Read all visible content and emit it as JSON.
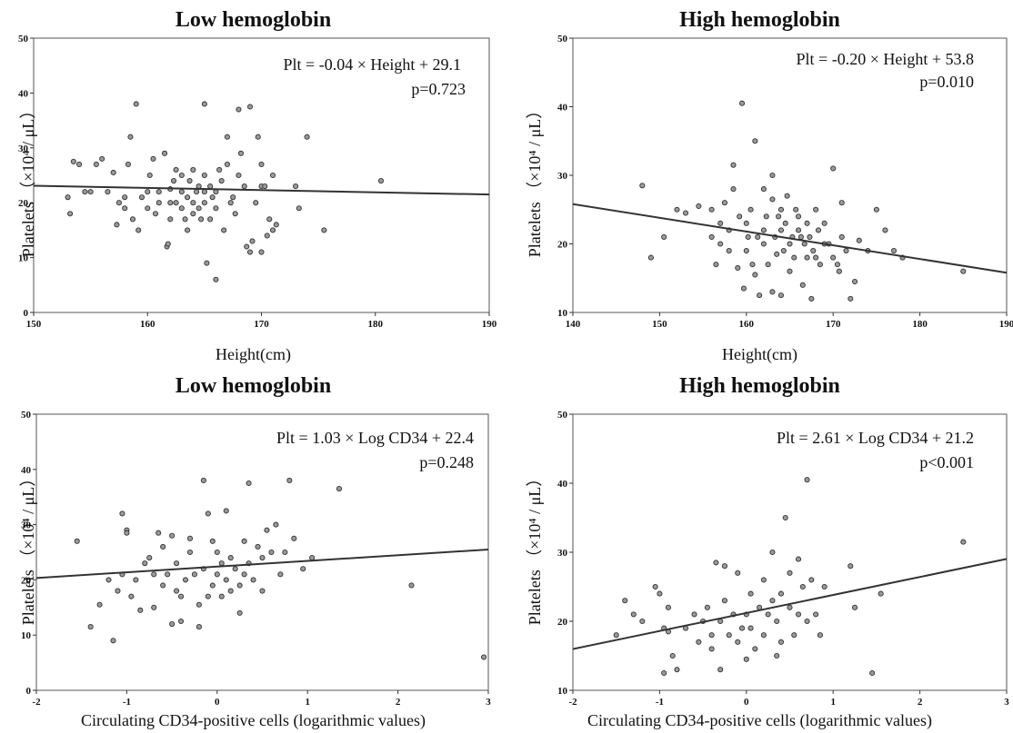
{
  "chart_data": [
    {
      "type": "scatter",
      "title": "Low hemoglobin",
      "xlabel": "Height(cm)",
      "ylabel": "Platelets （×10⁴ / μL）",
      "xlim": [
        150,
        190
      ],
      "ylim": [
        0,
        50
      ],
      "xticks": [
        150,
        160,
        170,
        180,
        190
      ],
      "yticks": [
        0,
        10,
        20,
        30,
        40,
        50
      ],
      "equation": "Plt = -0.04 × Height + 29.1",
      "p_value": "p=0.723",
      "fit": {
        "slope": -0.04,
        "intercept": 29.1
      },
      "points": [
        [
          153,
          21
        ],
        [
          153.2,
          18
        ],
        [
          153.5,
          27.5
        ],
        [
          154,
          27
        ],
        [
          154.5,
          22
        ],
        [
          155,
          22
        ],
        [
          155.5,
          27
        ],
        [
          156,
          28
        ],
        [
          156.5,
          22
        ],
        [
          157,
          25.5
        ],
        [
          157.3,
          16
        ],
        [
          157.5,
          20
        ],
        [
          158,
          19
        ],
        [
          158,
          21
        ],
        [
          158.3,
          27
        ],
        [
          158.5,
          32
        ],
        [
          158.7,
          17
        ],
        [
          159,
          38
        ],
        [
          159.2,
          15
        ],
        [
          159.5,
          21
        ],
        [
          160,
          19
        ],
        [
          160,
          22
        ],
        [
          160.2,
          25
        ],
        [
          160.5,
          28
        ],
        [
          160.7,
          18
        ],
        [
          161,
          20
        ],
        [
          161,
          22
        ],
        [
          161.5,
          29
        ],
        [
          161.7,
          12
        ],
        [
          161.8,
          12.5
        ],
        [
          162,
          17
        ],
        [
          162,
          20
        ],
        [
          162,
          22.5
        ],
        [
          162.3,
          24
        ],
        [
          162.5,
          26
        ],
        [
          162.5,
          20
        ],
        [
          163,
          19
        ],
        [
          163,
          22
        ],
        [
          163,
          25
        ],
        [
          163.3,
          17
        ],
        [
          163.5,
          15
        ],
        [
          163.5,
          21
        ],
        [
          163.7,
          24
        ],
        [
          164,
          18
        ],
        [
          164,
          20
        ],
        [
          164,
          26
        ],
        [
          164.3,
          22
        ],
        [
          164.5,
          23
        ],
        [
          164.5,
          19
        ],
        [
          164.7,
          17
        ],
        [
          165,
          38
        ],
        [
          165,
          22
        ],
        [
          165,
          25
        ],
        [
          165,
          20
        ],
        [
          165.2,
          9
        ],
        [
          165.5,
          23
        ],
        [
          165.5,
          17
        ],
        [
          165.7,
          21
        ],
        [
          166,
          6
        ],
        [
          166,
          22
        ],
        [
          166,
          19
        ],
        [
          166.3,
          26
        ],
        [
          166.5,
          24
        ],
        [
          166.7,
          15
        ],
        [
          167,
          27
        ],
        [
          167,
          32
        ],
        [
          167.3,
          20
        ],
        [
          167.5,
          21
        ],
        [
          167.7,
          18
        ],
        [
          168,
          37
        ],
        [
          168,
          25
        ],
        [
          168.2,
          29
        ],
        [
          168.5,
          23
        ],
        [
          168.7,
          12
        ],
        [
          169,
          37.5
        ],
        [
          169,
          11
        ],
        [
          169.2,
          13
        ],
        [
          169.5,
          20
        ],
        [
          169.7,
          32
        ],
        [
          170,
          23
        ],
        [
          170,
          27
        ],
        [
          170,
          11
        ],
        [
          170.3,
          23
        ],
        [
          170.5,
          14
        ],
        [
          170.7,
          17
        ],
        [
          171,
          25
        ],
        [
          171,
          15
        ],
        [
          171.3,
          16
        ],
        [
          173,
          23
        ],
        [
          173.3,
          19
        ],
        [
          174,
          32
        ],
        [
          175.5,
          15
        ],
        [
          180.5,
          24
        ]
      ]
    },
    {
      "type": "scatter",
      "title": "High hemoglobin",
      "xlabel": "Height(cm)",
      "ylabel": "Platelets （×10⁴ / μL）",
      "xlim": [
        140,
        190
      ],
      "ylim": [
        10,
        50
      ],
      "xticks": [
        140,
        150,
        160,
        170,
        180,
        190
      ],
      "yticks": [
        10,
        20,
        30,
        40,
        50
      ],
      "equation": "Plt = -0.20 × Height + 53.8",
      "p_value": "p=0.010",
      "fit": {
        "slope": -0.2,
        "intercept": 53.8
      },
      "points": [
        [
          148,
          28.5
        ],
        [
          149,
          18
        ],
        [
          150.5,
          21
        ],
        [
          152,
          25
        ],
        [
          153,
          24.5
        ],
        [
          154.5,
          25.5
        ],
        [
          156,
          25
        ],
        [
          156,
          21
        ],
        [
          156.5,
          17
        ],
        [
          157,
          20
        ],
        [
          157,
          23
        ],
        [
          157.5,
          26
        ],
        [
          158,
          19
        ],
        [
          158,
          22
        ],
        [
          158.5,
          28
        ],
        [
          158.5,
          31.5
        ],
        [
          159,
          16.5
        ],
        [
          159.2,
          24
        ],
        [
          159.5,
          40.5
        ],
        [
          159.7,
          13.5
        ],
        [
          160,
          19
        ],
        [
          160,
          23
        ],
        [
          160.2,
          21
        ],
        [
          160.5,
          25
        ],
        [
          160.7,
          17
        ],
        [
          161,
          35
        ],
        [
          161,
          15.5
        ],
        [
          161.3,
          21
        ],
        [
          161.5,
          12.5
        ],
        [
          162,
          20
        ],
        [
          162,
          28
        ],
        [
          162,
          22
        ],
        [
          162.3,
          24
        ],
        [
          162.5,
          17
        ],
        [
          163,
          30
        ],
        [
          163,
          13
        ],
        [
          163,
          26.5
        ],
        [
          163.3,
          21
        ],
        [
          163.5,
          18.5
        ],
        [
          163.7,
          24
        ],
        [
          164,
          12.5
        ],
        [
          164,
          22
        ],
        [
          164,
          25
        ],
        [
          164.3,
          19
        ],
        [
          164.5,
          23
        ],
        [
          164.7,
          27
        ],
        [
          165,
          20
        ],
        [
          165,
          16
        ],
        [
          165.3,
          21
        ],
        [
          165.5,
          18
        ],
        [
          165.7,
          25
        ],
        [
          166,
          24
        ],
        [
          166,
          22
        ],
        [
          166.3,
          21
        ],
        [
          166.5,
          14
        ],
        [
          166.7,
          20
        ],
        [
          167,
          18
        ],
        [
          167,
          23
        ],
        [
          167.3,
          21
        ],
        [
          167.5,
          12
        ],
        [
          167.7,
          19
        ],
        [
          168,
          25
        ],
        [
          168,
          18
        ],
        [
          168.3,
          22
        ],
        [
          168.5,
          17
        ],
        [
          169,
          20
        ],
        [
          169,
          23
        ],
        [
          169.5,
          20
        ],
        [
          170,
          31
        ],
        [
          170,
          18
        ],
        [
          170.5,
          17
        ],
        [
          170.7,
          16
        ],
        [
          171,
          26
        ],
        [
          171,
          21
        ],
        [
          171.5,
          19
        ],
        [
          172,
          12
        ],
        [
          172.5,
          14.5
        ],
        [
          173,
          20.5
        ],
        [
          174,
          19
        ],
        [
          175,
          25
        ],
        [
          176,
          22
        ],
        [
          177,
          19
        ],
        [
          178,
          18
        ],
        [
          185,
          16
        ]
      ]
    },
    {
      "type": "scatter",
      "title": "Low hemoglobin",
      "xlabel": "Circulating CD34-positive cells (logarithmic values)",
      "ylabel": "Platelets （×10⁴ / μL）",
      "xlim": [
        -2,
        3
      ],
      "ylim": [
        0,
        50
      ],
      "xticks": [
        -2,
        -1,
        0,
        1,
        2,
        3
      ],
      "yticks": [
        0,
        10,
        20,
        30,
        40,
        50
      ],
      "equation": "Plt = 1.03 × Log CD34 + 22.4",
      "p_value": "p=0.248",
      "fit": {
        "slope": 1.03,
        "intercept": 22.4
      },
      "points": [
        [
          -1.55,
          27
        ],
        [
          -1.4,
          11.5
        ],
        [
          -1.3,
          15.5
        ],
        [
          -1.2,
          20
        ],
        [
          -1.15,
          9
        ],
        [
          -1.1,
          18
        ],
        [
          -1.05,
          21
        ],
        [
          -1.05,
          32
        ],
        [
          -1.0,
          29
        ],
        [
          -1.0,
          28.5
        ],
        [
          -0.95,
          17
        ],
        [
          -0.9,
          20
        ],
        [
          -0.85,
          14.5
        ],
        [
          -0.8,
          23
        ],
        [
          -0.75,
          24
        ],
        [
          -0.7,
          21
        ],
        [
          -0.7,
          15
        ],
        [
          -0.65,
          28.5
        ],
        [
          -0.6,
          26
        ],
        [
          -0.6,
          19
        ],
        [
          -0.55,
          21
        ],
        [
          -0.5,
          12
        ],
        [
          -0.5,
          28
        ],
        [
          -0.45,
          18
        ],
        [
          -0.45,
          23
        ],
        [
          -0.4,
          17
        ],
        [
          -0.4,
          12.5
        ],
        [
          -0.35,
          20
        ],
        [
          -0.3,
          25
        ],
        [
          -0.3,
          27.5
        ],
        [
          -0.25,
          21
        ],
        [
          -0.2,
          15.5
        ],
        [
          -0.2,
          11.5
        ],
        [
          -0.15,
          38
        ],
        [
          -0.15,
          22
        ],
        [
          -0.1,
          17
        ],
        [
          -0.1,
          32
        ],
        [
          -0.05,
          27
        ],
        [
          -0.05,
          19
        ],
        [
          0.0,
          21
        ],
        [
          0.0,
          25
        ],
        [
          0.05,
          23
        ],
        [
          0.05,
          17
        ],
        [
          0.1,
          32.5
        ],
        [
          0.1,
          20
        ],
        [
          0.15,
          24
        ],
        [
          0.15,
          18
        ],
        [
          0.2,
          22
        ],
        [
          0.25,
          19
        ],
        [
          0.25,
          14
        ],
        [
          0.3,
          27
        ],
        [
          0.3,
          21
        ],
        [
          0.35,
          37.5
        ],
        [
          0.35,
          23
        ],
        [
          0.4,
          20
        ],
        [
          0.45,
          26
        ],
        [
          0.5,
          18
        ],
        [
          0.5,
          24
        ],
        [
          0.55,
          29
        ],
        [
          0.6,
          25
        ],
        [
          0.65,
          30
        ],
        [
          0.7,
          21
        ],
        [
          0.75,
          25
        ],
        [
          0.8,
          38
        ],
        [
          0.85,
          27.5
        ],
        [
          0.95,
          22
        ],
        [
          1.05,
          24
        ],
        [
          1.35,
          36.5
        ],
        [
          2.15,
          19
        ],
        [
          2.95,
          6
        ]
      ]
    },
    {
      "type": "scatter",
      "title": "High hemoglobin",
      "xlabel": "Circulating CD34-positive cells (logarithmic values)",
      "ylabel": "Platelets （×10⁴ / μL）",
      "xlim": [
        -2,
        3
      ],
      "ylim": [
        10,
        50
      ],
      "xticks": [
        -2,
        -1,
        0,
        1,
        2,
        3
      ],
      "yticks": [
        10,
        20,
        30,
        40,
        50
      ],
      "equation": "Plt = 2.61 × Log CD34 + 21.2",
      "p_value": "p<0.001",
      "fit": {
        "slope": 2.61,
        "intercept": 21.2
      },
      "points": [
        [
          -1.5,
          18
        ],
        [
          -1.4,
          23
        ],
        [
          -1.3,
          21
        ],
        [
          -1.2,
          20
        ],
        [
          -1.05,
          25
        ],
        [
          -1.0,
          24
        ],
        [
          -0.95,
          19
        ],
        [
          -0.95,
          12.5
        ],
        [
          -0.9,
          18.5
        ],
        [
          -0.9,
          22
        ],
        [
          -0.85,
          15
        ],
        [
          -0.8,
          13
        ],
        [
          -0.7,
          19
        ],
        [
          -0.6,
          21
        ],
        [
          -0.55,
          17
        ],
        [
          -0.5,
          20
        ],
        [
          -0.45,
          22
        ],
        [
          -0.4,
          16
        ],
        [
          -0.4,
          18
        ],
        [
          -0.35,
          28.5
        ],
        [
          -0.3,
          20
        ],
        [
          -0.3,
          13
        ],
        [
          -0.25,
          23
        ],
        [
          -0.25,
          28
        ],
        [
          -0.2,
          18
        ],
        [
          -0.15,
          21
        ],
        [
          -0.1,
          17
        ],
        [
          -0.1,
          27
        ],
        [
          -0.05,
          19
        ],
        [
          0.0,
          21
        ],
        [
          0.0,
          14.5
        ],
        [
          0.05,
          24
        ],
        [
          0.05,
          19
        ],
        [
          0.1,
          16
        ],
        [
          0.15,
          22
        ],
        [
          0.2,
          26
        ],
        [
          0.2,
          18
        ],
        [
          0.25,
          21
        ],
        [
          0.3,
          30
        ],
        [
          0.3,
          23
        ],
        [
          0.35,
          20
        ],
        [
          0.35,
          15
        ],
        [
          0.4,
          24
        ],
        [
          0.4,
          17
        ],
        [
          0.45,
          35
        ],
        [
          0.5,
          27
        ],
        [
          0.5,
          22
        ],
        [
          0.55,
          18
        ],
        [
          0.6,
          29
        ],
        [
          0.6,
          21
        ],
        [
          0.65,
          25
        ],
        [
          0.7,
          40.5
        ],
        [
          0.7,
          20
        ],
        [
          0.75,
          26
        ],
        [
          0.8,
          21
        ],
        [
          0.85,
          18
        ],
        [
          0.9,
          25
        ],
        [
          1.2,
          28
        ],
        [
          1.25,
          22
        ],
        [
          1.45,
          12.5
        ],
        [
          1.55,
          24
        ],
        [
          2.5,
          31.5
        ]
      ]
    }
  ]
}
